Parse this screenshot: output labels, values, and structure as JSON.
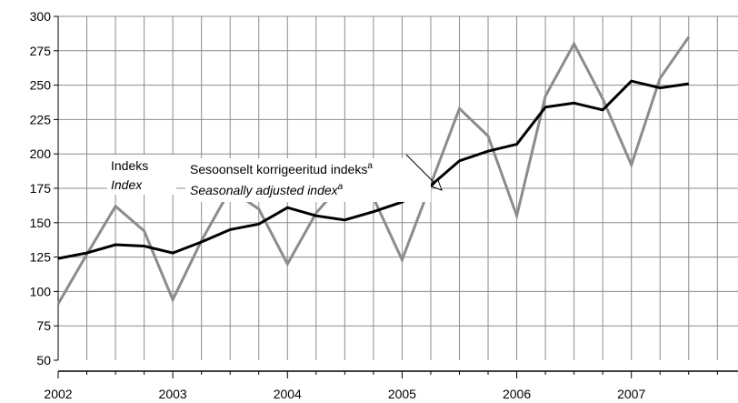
{
  "chart_data": {
    "type": "line",
    "title": "",
    "xlabel": "",
    "ylabel": "",
    "ylim": [
      50,
      300
    ],
    "yticks": [
      50,
      75,
      100,
      125,
      150,
      175,
      200,
      225,
      250,
      275,
      300
    ],
    "x_tick_labels": [
      "2002",
      "2003",
      "2004",
      "2005",
      "2006",
      "2007"
    ],
    "grid": true,
    "quarters": [
      "2002 Q1",
      "2002 Q2",
      "2002 Q3",
      "2002 Q4",
      "2003 Q1",
      "2003 Q2",
      "2003 Q3",
      "2003 Q4",
      "2004 Q1",
      "2004 Q2",
      "2004 Q3",
      "2004 Q4",
      "2005 Q1",
      "2005 Q2",
      "2005 Q3",
      "2005 Q4",
      "2006 Q1",
      "2006 Q2",
      "2006 Q3",
      "2006 Q4",
      "2007 Q1",
      "2007 Q2",
      "2007 Q3"
    ],
    "series": [
      {
        "name": "Indeks / Index",
        "color": "#8c8c8c",
        "values": [
          91,
          127,
          162,
          144,
          94,
          137,
          174,
          160,
          120,
          157,
          181,
          168,
          123,
          178,
          233,
          213,
          155,
          242,
          280,
          240,
          192,
          255,
          285
        ]
      },
      {
        "name": "Sesoonselt korrigeeritud indeks / Seasonally adjusted index",
        "color": "#000000",
        "values": [
          124,
          128,
          134,
          133,
          128,
          136,
          145,
          149,
          161,
          155,
          152,
          158,
          165,
          177,
          195,
          202,
          207,
          234,
          237,
          232,
          253,
          248,
          251
        ]
      }
    ],
    "annotations": {
      "index_et": "Indeks",
      "index_en": "Index",
      "sa_et": "Sesoonselt korrigeeritud indeks",
      "sa_en": "Seasonally adjusted index",
      "superscript": "a"
    }
  }
}
